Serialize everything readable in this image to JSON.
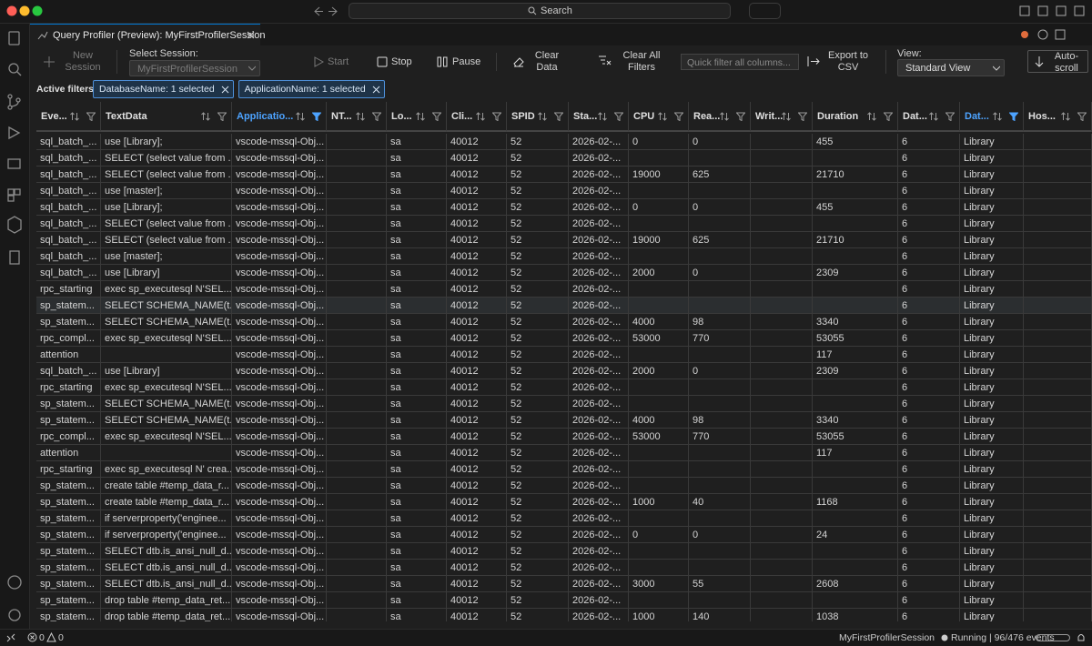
{
  "window": {
    "search": "Search"
  },
  "tab": {
    "title": "Query Profiler (Preview): MyFirstProfilerSession"
  },
  "toolbar": {
    "new_session": "New Session",
    "select_session_label": "Select Session:",
    "session": "MyFirstProfilerSession",
    "start": "Start",
    "stop": "Stop",
    "pause": "Pause",
    "clear_data": "Clear Data",
    "clear_all_filters": "Clear All Filters",
    "quick_filter_placeholder": "Quick filter all columns...",
    "export": "Export to CSV",
    "view_label": "View:",
    "view": "Standard View",
    "auto_scroll": "Auto-scroll"
  },
  "filters": {
    "label": "Active filters:",
    "chips": [
      "DatabaseName: 1 selected",
      "ApplicationName: 1 selected"
    ]
  },
  "table": {
    "columns": [
      {
        "label": "Eve...",
        "filtered": false
      },
      {
        "label": "TextData",
        "filtered": false
      },
      {
        "label": "Applicatio...",
        "filtered": true
      },
      {
        "label": "NT...",
        "filtered": false
      },
      {
        "label": "Lo...",
        "filtered": false
      },
      {
        "label": "Cli...",
        "filtered": false
      },
      {
        "label": "SPID",
        "filtered": false
      },
      {
        "label": "Sta...",
        "filtered": false
      },
      {
        "label": "CPU",
        "filtered": false
      },
      {
        "label": "Rea...",
        "filtered": false
      },
      {
        "label": "Writ...",
        "filtered": false
      },
      {
        "label": "Duration",
        "filtered": false
      },
      {
        "label": "Dat...",
        "filtered": false
      },
      {
        "label": "Dat...",
        "filtered": true
      },
      {
        "label": "Hos...",
        "filtered": false
      }
    ],
    "selected_row": 10,
    "rows": [
      [
        "sql_batch_...",
        "use [Library];",
        "vscode-mssql-Obj...",
        null,
        "sa",
        40012,
        52,
        "2026-02-...",
        0,
        0,
        null,
        455,
        6,
        "Library",
        null
      ],
      [
        "sql_batch_...",
        "SELECT (select value from ...",
        "vscode-mssql-Obj...",
        null,
        "sa",
        40012,
        52,
        "2026-02-...",
        null,
        null,
        null,
        null,
        6,
        "Library",
        null
      ],
      [
        "sql_batch_...",
        "SELECT (select value from ...",
        "vscode-mssql-Obj...",
        null,
        "sa",
        40012,
        52,
        "2026-02-...",
        19000,
        625,
        null,
        21710,
        6,
        "Library",
        null
      ],
      [
        "sql_batch_...",
        "use [master];",
        "vscode-mssql-Obj...",
        null,
        "sa",
        40012,
        52,
        "2026-02-...",
        null,
        null,
        null,
        null,
        6,
        "Library",
        null
      ],
      [
        "sql_batch_...",
        "use [Library];",
        "vscode-mssql-Obj...",
        null,
        "sa",
        40012,
        52,
        "2026-02-...",
        0,
        0,
        null,
        455,
        6,
        "Library",
        null
      ],
      [
        "sql_batch_...",
        "SELECT (select value from ...",
        "vscode-mssql-Obj...",
        null,
        "sa",
        40012,
        52,
        "2026-02-...",
        null,
        null,
        null,
        null,
        6,
        "Library",
        null
      ],
      [
        "sql_batch_...",
        "SELECT (select value from ...",
        "vscode-mssql-Obj...",
        null,
        "sa",
        40012,
        52,
        "2026-02-...",
        19000,
        625,
        null,
        21710,
        6,
        "Library",
        null
      ],
      [
        "sql_batch_...",
        "use [master];",
        "vscode-mssql-Obj...",
        null,
        "sa",
        40012,
        52,
        "2026-02-...",
        null,
        null,
        null,
        null,
        6,
        "Library",
        null
      ],
      [
        "sql_batch_...",
        "use [Library]",
        "vscode-mssql-Obj...",
        null,
        "sa",
        40012,
        52,
        "2026-02-...",
        2000,
        0,
        null,
        2309,
        6,
        "Library",
        null
      ],
      [
        "rpc_starting",
        "exec sp_executesql N'SEL...",
        "vscode-mssql-Obj...",
        null,
        "sa",
        40012,
        52,
        "2026-02-...",
        null,
        null,
        null,
        null,
        6,
        "Library",
        null
      ],
      [
        "sp_statem...",
        "SELECT SCHEMA_NAME(t...",
        "vscode-mssql-Obj...",
        null,
        "sa",
        40012,
        52,
        "2026-02-...",
        null,
        null,
        null,
        null,
        6,
        "Library",
        null
      ],
      [
        "sp_statem...",
        "SELECT SCHEMA_NAME(t...",
        "vscode-mssql-Obj...",
        null,
        "sa",
        40012,
        52,
        "2026-02-...",
        4000,
        98,
        null,
        3340,
        6,
        "Library",
        null
      ],
      [
        "rpc_compl...",
        "exec sp_executesql N'SEL...",
        "vscode-mssql-Obj...",
        null,
        "sa",
        40012,
        52,
        "2026-02-...",
        53000,
        770,
        null,
        53055,
        6,
        "Library",
        null
      ],
      [
        "attention",
        null,
        "vscode-mssql-Obj...",
        null,
        "sa",
        40012,
        52,
        "2026-02-...",
        null,
        null,
        null,
        117,
        6,
        "Library",
        null
      ],
      [
        "sql_batch_...",
        "use [Library]",
        "vscode-mssql-Obj...",
        null,
        "sa",
        40012,
        52,
        "2026-02-...",
        2000,
        0,
        null,
        2309,
        6,
        "Library",
        null
      ],
      [
        "rpc_starting",
        "exec sp_executesql N'SEL...",
        "vscode-mssql-Obj...",
        null,
        "sa",
        40012,
        52,
        "2026-02-...",
        null,
        null,
        null,
        null,
        6,
        "Library",
        null
      ],
      [
        "sp_statem...",
        "SELECT SCHEMA_NAME(t...",
        "vscode-mssql-Obj...",
        null,
        "sa",
        40012,
        52,
        "2026-02-...",
        null,
        null,
        null,
        null,
        6,
        "Library",
        null
      ],
      [
        "sp_statem...",
        "SELECT SCHEMA_NAME(t...",
        "vscode-mssql-Obj...",
        null,
        "sa",
        40012,
        52,
        "2026-02-...",
        4000,
        98,
        null,
        3340,
        6,
        "Library",
        null
      ],
      [
        "rpc_compl...",
        "exec sp_executesql N'SEL...",
        "vscode-mssql-Obj...",
        null,
        "sa",
        40012,
        52,
        "2026-02-...",
        53000,
        770,
        null,
        53055,
        6,
        "Library",
        null
      ],
      [
        "attention",
        null,
        "vscode-mssql-Obj...",
        null,
        "sa",
        40012,
        52,
        "2026-02-...",
        null,
        null,
        null,
        117,
        6,
        "Library",
        null
      ],
      [
        "rpc_starting",
        "exec sp_executesql N' crea...",
        "vscode-mssql-Obj...",
        null,
        "sa",
        40012,
        52,
        "2026-02-...",
        null,
        null,
        null,
        null,
        6,
        "Library",
        null
      ],
      [
        "sp_statem...",
        "create table #temp_data_r...",
        "vscode-mssql-Obj...",
        null,
        "sa",
        40012,
        52,
        "2026-02-...",
        null,
        null,
        null,
        null,
        6,
        "Library",
        null
      ],
      [
        "sp_statem...",
        "create table #temp_data_r...",
        "vscode-mssql-Obj...",
        null,
        "sa",
        40012,
        52,
        "2026-02-...",
        1000,
        40,
        null,
        1168,
        6,
        "Library",
        null
      ],
      [
        "sp_statem...",
        "if serverproperty('enginee...",
        "vscode-mssql-Obj...",
        null,
        "sa",
        40012,
        52,
        "2026-02-...",
        null,
        null,
        null,
        null,
        6,
        "Library",
        null
      ],
      [
        "sp_statem...",
        "if serverproperty('enginee...",
        "vscode-mssql-Obj...",
        null,
        "sa",
        40012,
        52,
        "2026-02-...",
        0,
        0,
        null,
        24,
        6,
        "Library",
        null
      ],
      [
        "sp_statem...",
        "SELECT dtb.is_ansi_null_d...",
        "vscode-mssql-Obj...",
        null,
        "sa",
        40012,
        52,
        "2026-02-...",
        null,
        null,
        null,
        null,
        6,
        "Library",
        null
      ],
      [
        "sp_statem...",
        "SELECT dtb.is_ansi_null_d...",
        "vscode-mssql-Obj...",
        null,
        "sa",
        40012,
        52,
        "2026-02-...",
        null,
        null,
        null,
        null,
        6,
        "Library",
        null
      ],
      [
        "sp_statem...",
        "SELECT dtb.is_ansi_null_d...",
        "vscode-mssql-Obj...",
        null,
        "sa",
        40012,
        52,
        "2026-02-...",
        3000,
        55,
        null,
        2608,
        6,
        "Library",
        null
      ],
      [
        "sp_statem...",
        "drop table #temp_data_ret...",
        "vscode-mssql-Obj...",
        null,
        "sa",
        40012,
        52,
        "2026-02-...",
        null,
        null,
        null,
        null,
        6,
        "Library",
        null
      ],
      [
        "sp_statem...",
        "drop table #temp_data_ret...",
        "vscode-mssql-Obj...",
        null,
        "sa",
        40012,
        52,
        "2026-02-...",
        1000,
        140,
        null,
        1038,
        6,
        "Library",
        null
      ]
    ]
  },
  "status": {
    "errors": 0,
    "warnings": 0,
    "session": "MyFirstProfilerSession",
    "state": "Running | 96/476 events"
  }
}
